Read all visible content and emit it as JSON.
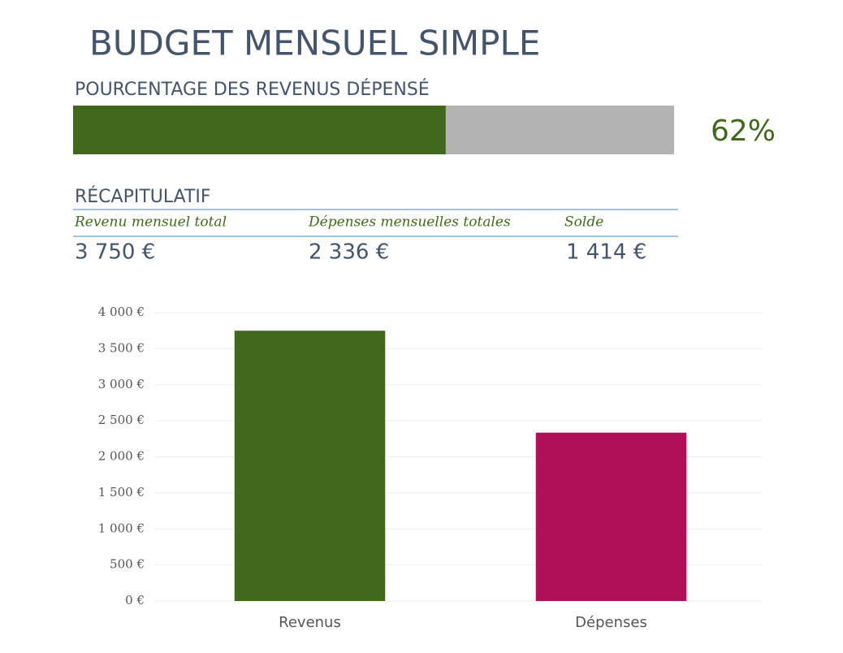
{
  "title": "BUDGET MENSUEL SIMPLE",
  "progress": {
    "label": "POURCENTAGE DES REVENUS DÉPENSÉ",
    "value": 62,
    "value_label": "62%",
    "xlim": [
      0,
      100
    ],
    "color": "#41691b",
    "track_color": "#b3b3b3"
  },
  "summary": {
    "title": "RÉCAPITULATIF",
    "columns": [
      {
        "label": "Revenu mensuel total",
        "value": "3 750 €"
      },
      {
        "label": "Dépenses mensuelles totales",
        "value": "2 336 €"
      },
      {
        "label": "Solde",
        "value": "1 414 €"
      }
    ]
  },
  "chart_data": {
    "type": "bar",
    "categories": [
      "Revenus",
      "Dépenses"
    ],
    "values": [
      3750,
      2336
    ],
    "colors": [
      "#41691b",
      "#b01057"
    ],
    "ylim": [
      0,
      4000
    ],
    "yticks": [
      {
        "value": 0,
        "label": "0 €"
      },
      {
        "value": 500,
        "label": "500 €"
      },
      {
        "value": 1000,
        "label": "1 000 €"
      },
      {
        "value": 1500,
        "label": "1 500 €"
      },
      {
        "value": 2000,
        "label": "2 000 €"
      },
      {
        "value": 2500,
        "label": "2 500 €"
      },
      {
        "value": 3000,
        "label": "3 000 €"
      },
      {
        "value": 3500,
        "label": "3 500 €"
      },
      {
        "value": 4000,
        "label": "4 000 €"
      }
    ],
    "grid": true
  }
}
